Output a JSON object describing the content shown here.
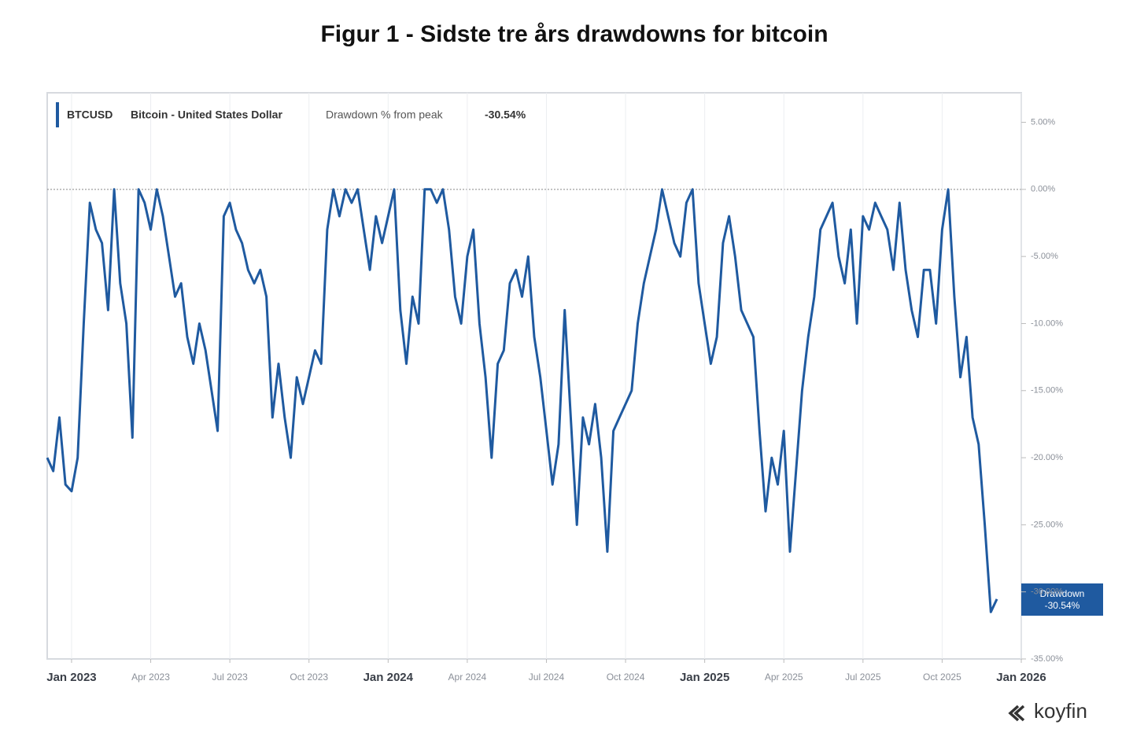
{
  "chart_data": {
    "type": "line",
    "title": "Figur 1 - Sidste tre års drawdowns for bitcoin",
    "legend": {
      "ticker": "BTCUSD",
      "name": "Bitcoin - United States Dollar",
      "metric": "Drawdown % from peak",
      "last": "-30.54%"
    },
    "end_label": {
      "name": "Drawdown",
      "value": "-30.54%"
    },
    "brand": "koyfin",
    "categories": [
      null,
      null,
      null,
      null,
      "Jan 2023",
      null,
      null,
      null,
      null,
      null,
      null,
      null,
      null,
      null,
      null,
      null,
      null,
      "Apr 2023",
      null,
      null,
      null,
      null,
      null,
      null,
      null,
      null,
      null,
      null,
      null,
      null,
      "Jul 2023",
      null,
      null,
      null,
      null,
      null,
      null,
      null,
      null,
      null,
      null,
      null,
      null,
      "Oct 2023",
      null,
      null,
      null,
      null,
      null,
      null,
      null,
      null,
      null,
      null,
      null,
      null,
      "Jan 2024",
      null,
      null,
      null,
      null,
      null,
      null,
      null,
      null,
      null,
      null,
      null,
      null,
      "Apr 2024",
      null,
      null,
      null,
      null,
      null,
      null,
      null,
      null,
      null,
      null,
      null,
      null,
      "Jul 2024",
      null,
      null,
      null,
      null,
      null,
      null,
      null,
      null,
      null,
      null,
      null,
      null,
      "Oct 2024",
      null,
      null,
      null,
      null,
      null,
      null,
      null,
      null,
      null,
      null,
      null,
      null,
      "Jan 2025",
      null,
      null,
      null,
      null,
      null,
      null,
      null,
      null,
      null,
      null,
      null,
      null,
      "Apr 2025",
      null,
      null,
      null,
      null,
      null,
      null,
      null,
      null,
      null,
      null,
      null,
      null,
      "Jul 2025",
      null,
      null,
      null,
      null,
      null,
      null,
      null,
      null,
      null,
      null,
      null,
      null,
      "Oct 2025",
      null,
      null,
      null,
      null,
      null,
      null,
      null,
      null,
      null,
      null,
      null,
      null,
      "Jan 2026"
    ],
    "series": [
      {
        "name": "Drawdown",
        "color": "#1f5aa0",
        "values": [
          -20,
          -21,
          -17,
          -22,
          -22.5,
          -20,
          -10,
          -1,
          -3,
          -4,
          -9,
          0,
          -7,
          -10,
          -18.5,
          0,
          -1,
          -3,
          0,
          -2,
          -5,
          -8,
          -7,
          -11,
          -13,
          -10,
          -12,
          -15,
          -18,
          -2,
          -1,
          -3,
          -4,
          -6,
          -7,
          -6,
          -8,
          -17,
          -13,
          -17,
          -20,
          -14,
          -16,
          -14,
          -12,
          -13,
          -3,
          0,
          -2,
          0,
          -1,
          0,
          -3,
          -6,
          -2,
          -4,
          -2,
          0,
          -9,
          -13,
          -8,
          -10,
          0,
          0,
          -1,
          0,
          -3,
          -8,
          -10,
          -5,
          -3,
          -10,
          -14,
          -20,
          -13,
          -12,
          -7,
          -6,
          -8,
          -5,
          -11,
          -14,
          -18,
          -22,
          -19,
          -9,
          -17,
          -25,
          -17,
          -19,
          -16,
          -20,
          -27,
          -18,
          -17,
          -16,
          -15,
          -10,
          -7,
          -5,
          -3,
          0,
          -2,
          -4,
          -5,
          -1,
          0,
          -7,
          -10,
          -13,
          -11,
          -4,
          -2,
          -5,
          -9,
          -10,
          -11,
          -18,
          -24,
          -20,
          -22,
          -18,
          -27,
          -21,
          -15,
          -11,
          -8,
          -3,
          -2,
          -1,
          -5,
          -7,
          -3,
          -10,
          -2,
          -3,
          -1,
          -2,
          -3,
          -6,
          -1,
          -6,
          -9,
          -11,
          -6,
          -6,
          -10,
          -3,
          0,
          -8,
          -14,
          -11,
          -17,
          -19,
          -25,
          -31.5,
          -30.54,
          null,
          null,
          null,
          null
        ]
      }
    ],
    "ylim": [
      -35,
      7.2
    ],
    "yticks": [
      {
        "value": 5,
        "label": "5.00%"
      },
      {
        "value": 0,
        "label": "0.00%"
      },
      {
        "value": -5,
        "label": "-5.00%"
      },
      {
        "value": -10,
        "label": "-10.00%"
      },
      {
        "value": -15,
        "label": "-15.00%"
      },
      {
        "value": -20,
        "label": "-20.00%"
      },
      {
        "value": -25,
        "label": "-25.00%"
      },
      {
        "value": -30,
        "label": "-30.00%"
      },
      {
        "value": -35,
        "label": "-35.00%"
      }
    ],
    "zero_line": true,
    "grid": true
  }
}
